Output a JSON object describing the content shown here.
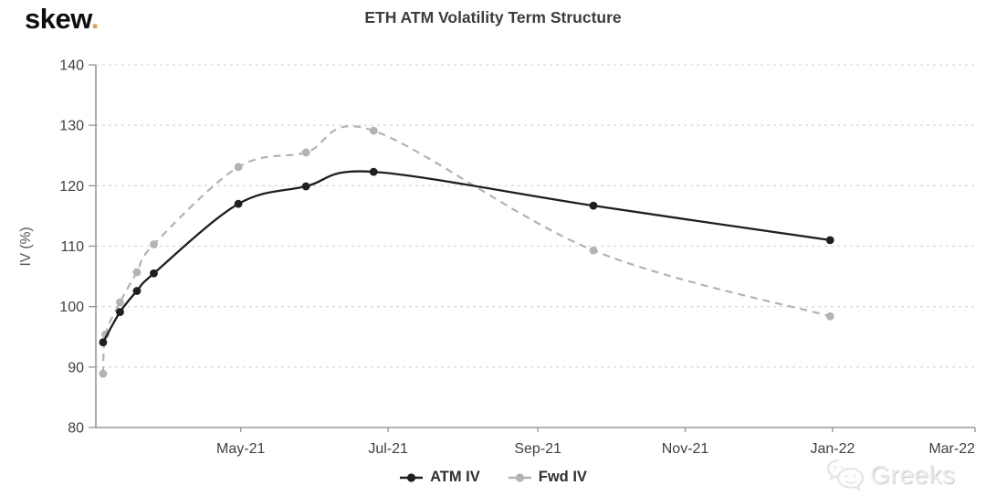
{
  "brand": {
    "logo_text": "skew",
    "logo_dot": ".",
    "logo_dot_color": "#d2a24c"
  },
  "header": {
    "title": "ETH ATM Volatility Term Structure"
  },
  "watermark": {
    "label": "Greeks"
  },
  "legend": {
    "items": [
      "ATM IV",
      "Fwd IV"
    ]
  },
  "chart_data": {
    "type": "line",
    "title": "ETH ATM Volatility Term Structure",
    "xlabel": "",
    "ylabel": "IV (%)",
    "ylim": [
      80,
      140
    ],
    "y_ticks": [
      80,
      90,
      100,
      110,
      120,
      130,
      140
    ],
    "x_domain": [
      "2021-03-02",
      "2022-03-01"
    ],
    "x_ticks": [
      {
        "date": "2021-05-01",
        "label": "May-21"
      },
      {
        "date": "2021-07-01",
        "label": "Jul-21"
      },
      {
        "date": "2021-09-01",
        "label": "Sep-21"
      },
      {
        "date": "2021-11-01",
        "label": "Nov-21"
      },
      {
        "date": "2022-01-01",
        "label": "Jan-22"
      },
      {
        "date": "2022-03-01",
        "label": "Mar-22",
        "align": "end"
      }
    ],
    "grid": "horizontal-dashed",
    "grid_color": "#d9d9d9",
    "axis_color": "#999999",
    "tick_label_color": "#414141",
    "legend_position": "bottom-center",
    "series": [
      {
        "name": "ATM IV",
        "style": "solid",
        "color": "#1f1f1f",
        "points": [
          {
            "date": "2021-03-05",
            "value": 94.1
          },
          {
            "date": "2021-03-12",
            "value": 99.1
          },
          {
            "date": "2021-03-19",
            "value": 102.6
          },
          {
            "date": "2021-03-26",
            "value": 105.5
          },
          {
            "date": "2021-04-30",
            "value": 117.0
          },
          {
            "date": "2021-05-28",
            "value": 119.9
          },
          {
            "date": "2021-06-25",
            "value": 122.3
          },
          {
            "date": "2021-09-24",
            "value": 116.7
          },
          {
            "date": "2021-12-31",
            "value": 111.0
          }
        ]
      },
      {
        "name": "Fwd IV",
        "style": "dashed",
        "color": "#b3b3b3",
        "points": [
          {
            "date": "2021-03-05",
            "value": 88.9
          },
          {
            "date": "2021-03-06",
            "value": 95.4
          },
          {
            "date": "2021-03-12",
            "value": 100.7
          },
          {
            "date": "2021-03-19",
            "value": 105.7
          },
          {
            "date": "2021-03-26",
            "value": 110.3
          },
          {
            "date": "2021-04-30",
            "value": 123.1
          },
          {
            "date": "2021-05-28",
            "value": 125.5
          },
          {
            "date": "2021-06-25",
            "value": 129.1
          },
          {
            "date": "2021-09-24",
            "value": 109.3
          },
          {
            "date": "2021-12-31",
            "value": 98.4
          }
        ]
      }
    ]
  }
}
